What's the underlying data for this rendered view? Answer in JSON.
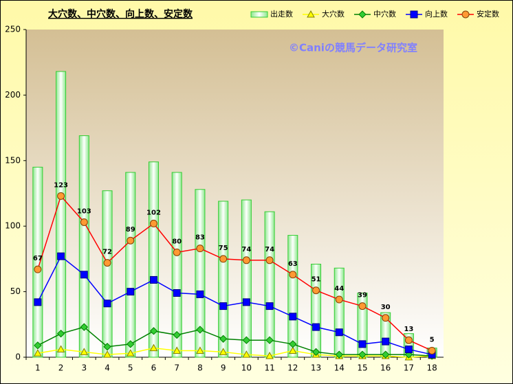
{
  "chart_data": {
    "type": "combo",
    "title": "大穴数、中穴数、向上数、安定数",
    "watermark": "©Caniの競馬データ研究室",
    "categories": [
      "1",
      "2",
      "3",
      "4",
      "5",
      "6",
      "7",
      "8",
      "9",
      "10",
      "11",
      "12",
      "13",
      "14",
      "15",
      "16",
      "17",
      "18"
    ],
    "ylim": [
      0,
      250
    ],
    "yticks": [
      0,
      50,
      100,
      150,
      200,
      250
    ],
    "legend": "top-right",
    "series": [
      {
        "name": "出走数",
        "type": "bar",
        "color": "#33cc33",
        "values": [
          145,
          218,
          169,
          127,
          141,
          149,
          141,
          128,
          119,
          120,
          111,
          93,
          71,
          68,
          49,
          34,
          18,
          7
        ]
      },
      {
        "name": "大穴数",
        "type": "line",
        "marker": "triangle",
        "color": "#ffff00",
        "values": [
          3,
          6,
          4,
          2,
          3,
          7,
          5,
          5,
          4,
          2,
          1,
          5,
          2,
          1,
          1,
          1,
          0,
          1
        ]
      },
      {
        "name": "中穴数",
        "type": "line",
        "marker": "diamond",
        "color": "#008000",
        "values": [
          9,
          18,
          23,
          8,
          10,
          20,
          17,
          21,
          14,
          13,
          13,
          10,
          4,
          2,
          2,
          2,
          2,
          1
        ]
      },
      {
        "name": "向上数",
        "type": "line",
        "marker": "square",
        "color": "#0000ff",
        "values": [
          42,
          77,
          63,
          41,
          50,
          59,
          49,
          48,
          39,
          42,
          39,
          31,
          23,
          19,
          10,
          12,
          6,
          2
        ]
      },
      {
        "name": "安定数",
        "type": "line",
        "marker": "circle",
        "color": "#ff0000",
        "data_labels": true,
        "values": [
          67,
          123,
          103,
          72,
          89,
          102,
          80,
          83,
          75,
          74,
          74,
          63,
          51,
          44,
          39,
          30,
          13,
          5
        ]
      }
    ]
  }
}
